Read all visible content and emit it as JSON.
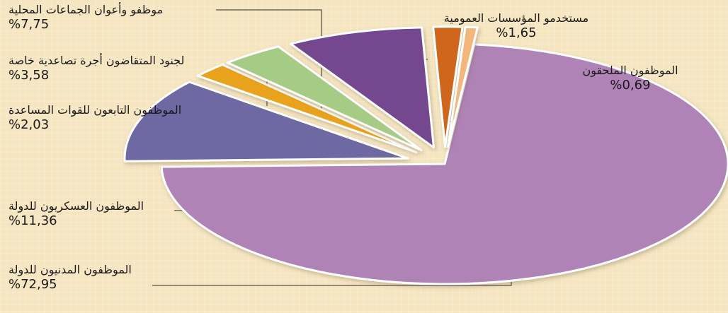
{
  "chart_data": {
    "type": "pie",
    "title": "",
    "slices": [
      {
        "label": "الموظفون المدنيون للدولة",
        "value_text": "%72,95",
        "value": 72.95,
        "color": "#b083b6"
      },
      {
        "label": "الموظفون العسكريون للدولة",
        "value_text": "%11,36",
        "value": 11.36,
        "color": "#6e68a3"
      },
      {
        "label": "الموظفون التابعون للقوات المساعدة",
        "value_text": "%2,03",
        "value": 2.03,
        "color": "#e8a21a"
      },
      {
        "label": "لجنود المتقاضون أجرة تصاعدية خاصة",
        "value_text": "%3,58",
        "value": 3.58,
        "color": "#a5cb85"
      },
      {
        "label": "موظفو وأعوان الجماعات المحلية",
        "value_text": "%7,75",
        "value": 7.75,
        "color": "#75478f"
      },
      {
        "label": "مستخدمو المؤسسات العمومية",
        "value_text": "%1,65",
        "value": 1.65,
        "color": "#cf661e"
      },
      {
        "label": "الموظفون الملحقون",
        "value_text": "%0,69",
        "value": 0.69,
        "color": "#f3b77c"
      }
    ],
    "background_color": "#f5e5c0",
    "legend": "none"
  }
}
